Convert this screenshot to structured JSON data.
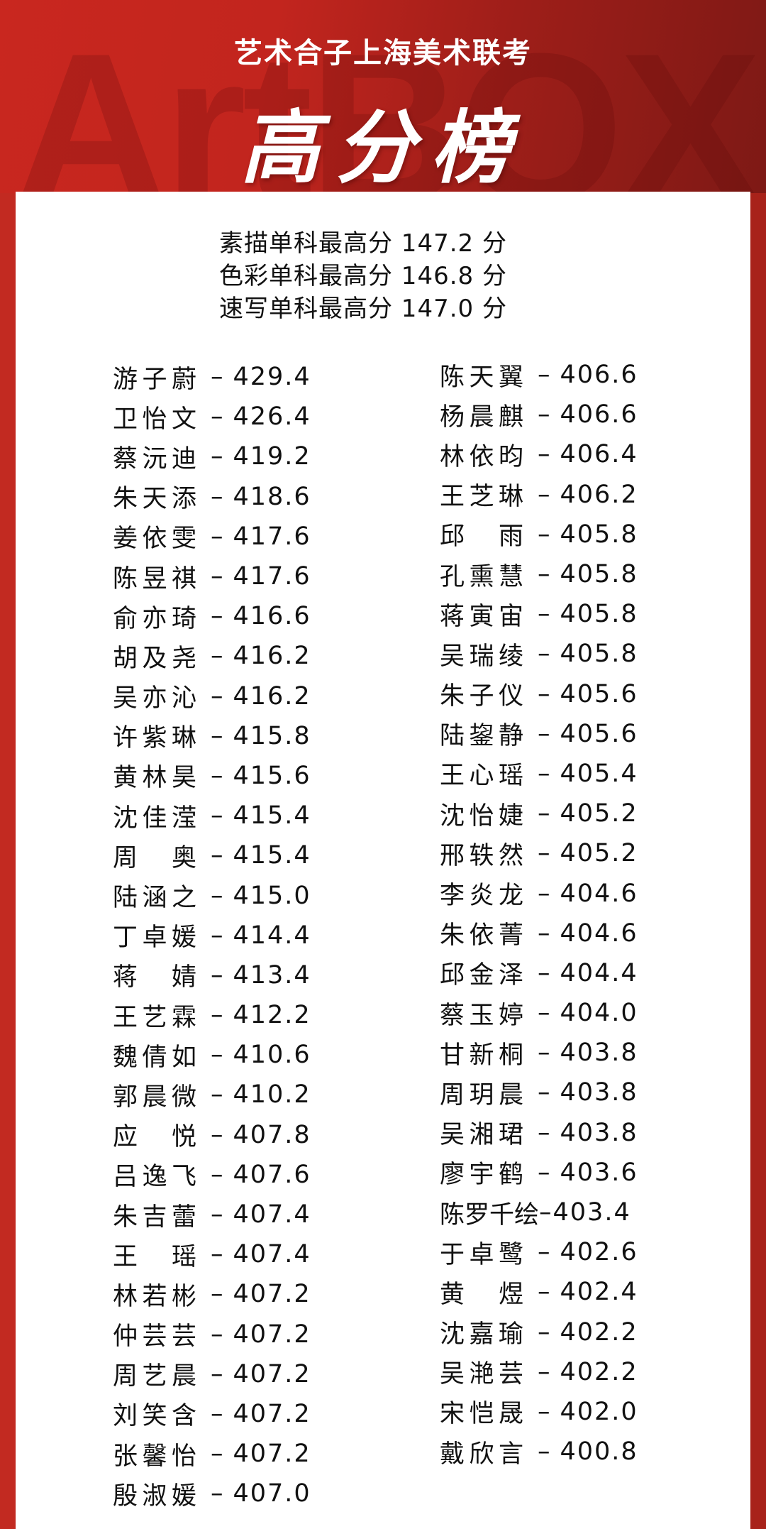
{
  "header": {
    "watermark": "ArtBOX",
    "subtitle": "艺术合子上海美术联考",
    "title": "高分榜"
  },
  "summary": [
    "素描单科最高分 147.2 分",
    "色彩单科最高分 146.8 分",
    "速写单科最高分 147.0 分"
  ],
  "separator": "–",
  "left_column": [
    {
      "name": "游子蔚",
      "score": "429.4"
    },
    {
      "name": "卫怡文",
      "score": "426.4"
    },
    {
      "name": "蔡沅迪",
      "score": "419.2"
    },
    {
      "name": "朱天添",
      "score": "418.6"
    },
    {
      "name": "姜依雯",
      "score": "417.6"
    },
    {
      "name": "陈昱祺",
      "score": "417.6"
    },
    {
      "name": "俞亦琦",
      "score": "416.6"
    },
    {
      "name": "胡及尧",
      "score": "416.2"
    },
    {
      "name": "吴亦沁",
      "score": "416.2"
    },
    {
      "name": "许紫琳",
      "score": "415.8"
    },
    {
      "name": "黄林昊",
      "score": "415.6"
    },
    {
      "name": "沈佳滢",
      "score": "415.4"
    },
    {
      "name": "周奥",
      "score": "415.4"
    },
    {
      "name": "陆涵之",
      "score": "415.0"
    },
    {
      "name": "丁卓媛",
      "score": "414.4"
    },
    {
      "name": "蒋婧",
      "score": "413.4"
    },
    {
      "name": "王艺霖",
      "score": "412.2"
    },
    {
      "name": "魏倩如",
      "score": "410.6"
    },
    {
      "name": "郭晨微",
      "score": "410.2"
    },
    {
      "name": "应悦",
      "score": "407.8"
    },
    {
      "name": "吕逸飞",
      "score": "407.6"
    },
    {
      "name": "朱吉蕾",
      "score": "407.4"
    },
    {
      "name": "王瑶",
      "score": "407.4"
    },
    {
      "name": "林若彬",
      "score": "407.2"
    },
    {
      "name": "仲芸芸",
      "score": "407.2"
    },
    {
      "name": "周艺晨",
      "score": "407.2"
    },
    {
      "name": "刘笑含",
      "score": "407.2"
    },
    {
      "name": "张馨怡",
      "score": "407.2"
    },
    {
      "name": "殷淑媛",
      "score": "407.0"
    }
  ],
  "right_column": [
    {
      "name": "陈天翼",
      "score": "406.6"
    },
    {
      "name": "杨晨麒",
      "score": "406.6"
    },
    {
      "name": "林依昀",
      "score": "406.4"
    },
    {
      "name": "王芝琳",
      "score": "406.2"
    },
    {
      "name": "邱雨",
      "score": "405.8"
    },
    {
      "name": "孔熏慧",
      "score": "405.8"
    },
    {
      "name": "蒋寅宙",
      "score": "405.8"
    },
    {
      "name": "吴瑞绫",
      "score": "405.8"
    },
    {
      "name": "朱子仪",
      "score": "405.6"
    },
    {
      "name": "陆鋆静",
      "score": "405.6"
    },
    {
      "name": "王心瑶",
      "score": "405.4"
    },
    {
      "name": "沈怡婕",
      "score": "405.2"
    },
    {
      "name": "邢轶然",
      "score": "405.2"
    },
    {
      "name": "李炎龙",
      "score": "404.6"
    },
    {
      "name": "朱依菁",
      "score": "404.6"
    },
    {
      "name": "邱金泽",
      "score": "404.4"
    },
    {
      "name": "蔡玉婷",
      "score": "404.0"
    },
    {
      "name": "甘新桐",
      "score": "403.8"
    },
    {
      "name": "周玥晨",
      "score": "403.8"
    },
    {
      "name": "吴湘珺",
      "score": "403.8"
    },
    {
      "name": "廖宇鹤",
      "score": "403.6"
    },
    {
      "name": "陈罗千绘",
      "score": "403.4"
    },
    {
      "name": "于卓鹭",
      "score": "402.6"
    },
    {
      "name": "黄煜",
      "score": "402.4"
    },
    {
      "name": "沈嘉瑜",
      "score": "402.2"
    },
    {
      "name": "吴滟芸",
      "score": "402.2"
    },
    {
      "name": "宋恺晟",
      "score": "402.0"
    },
    {
      "name": "戴欣言",
      "score": "400.8"
    }
  ],
  "colors": {
    "header_red": "#c2251e",
    "header_dark": "#7e1915",
    "card": "#ffffff",
    "text": "#111111"
  }
}
